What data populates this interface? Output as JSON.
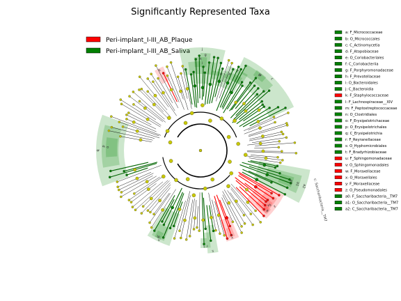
{
  "chart_data": {
    "type": "cladogram",
    "title": "Significantly Represented Taxa",
    "colors": {
      "plaque": "#ff0000",
      "saliva": "#008000",
      "neutral_node": "#c8c800",
      "branch": "#000000"
    },
    "legend": [
      {
        "label": "Peri-implant_I-III_AB_Plaque",
        "group": "plaque"
      },
      {
        "label": "Peri-implant_I-III_AB_Saliva",
        "group": "saliva"
      }
    ],
    "clade_key": [
      {
        "label": "a: F_Micrococcaceae",
        "group": "saliva"
      },
      {
        "label": "b: O_Micrococcales",
        "group": "saliva"
      },
      {
        "label": "c: C_Actinomycetia",
        "group": "saliva"
      },
      {
        "label": "d: F_Atopobiaceae",
        "group": "saliva"
      },
      {
        "label": "e: O_Coriobacteriales",
        "group": "saliva"
      },
      {
        "label": "f: C_Coriobacteriia",
        "group": "saliva"
      },
      {
        "label": "g: F_Porphyromonadaceae",
        "group": "saliva"
      },
      {
        "label": "h: F_Prevotellaceae",
        "group": "saliva"
      },
      {
        "label": "i: O_Bacteroidales",
        "group": "saliva"
      },
      {
        "label": "j: C_Bacteroidia",
        "group": "saliva"
      },
      {
        "label": "k: F_Staphylococcaceae",
        "group": "plaque"
      },
      {
        "label": "l: F_Lachnospiraceae__XIV",
        "group": "saliva"
      },
      {
        "label": "m: F_Peptostreptococcaceae",
        "group": "saliva"
      },
      {
        "label": "n: O_Clostridiales",
        "group": "saliva"
      },
      {
        "label": "o: F_Erysipelotrichaceae",
        "group": "saliva"
      },
      {
        "label": "p: O_Erysipelotrichales",
        "group": "saliva"
      },
      {
        "label": "q: C_Erysipelotrichia",
        "group": "saliva"
      },
      {
        "label": "r: F_Reyranellaceae",
        "group": "saliva"
      },
      {
        "label": "s: O_Hyphomicrobiales",
        "group": "saliva"
      },
      {
        "label": "t: F_Bradyrhizobiaceae",
        "group": "saliva"
      },
      {
        "label": "u: F_Sphingomonadaceae",
        "group": "plaque"
      },
      {
        "label": "v: O_Sphingomonadales",
        "group": "plaque"
      },
      {
        "label": "w: F_Moraxellaceae",
        "group": "plaque"
      },
      {
        "label": "x: O_Moraxellales",
        "group": "plaque"
      },
      {
        "label": "y: F_Moraxellaceae",
        "group": "plaque"
      },
      {
        "label": "z: O_Pseudomonadales",
        "group": "plaque"
      },
      {
        "label": "a0: F_Saccharibacteria__TM7",
        "group": "saliva"
      },
      {
        "label": "a1: O_Saccharibacteria__TM7",
        "group": "saliva"
      },
      {
        "label": "a2: C_Saccharibacteria__TM7",
        "group": "saliva"
      }
    ],
    "sector_labels": [
      {
        "letter": "c",
        "group": "saliva"
      },
      {
        "letter": "b",
        "group": "saliva"
      },
      {
        "letter": "a",
        "group": "saliva"
      },
      {
        "letter": "f",
        "group": "saliva"
      },
      {
        "letter": "e",
        "group": "saliva"
      },
      {
        "letter": "d",
        "group": "saliva"
      },
      {
        "letter": "j",
        "group": "saliva"
      },
      {
        "letter": "i",
        "group": "saliva"
      },
      {
        "letter": "h",
        "group": "saliva"
      },
      {
        "letter": "g",
        "group": "saliva"
      },
      {
        "letter": "k",
        "group": "plaque"
      },
      {
        "letter": "q",
        "group": "saliva"
      },
      {
        "letter": "p",
        "group": "saliva"
      },
      {
        "letter": "o",
        "group": "saliva"
      },
      {
        "letter": "n",
        "group": "saliva"
      },
      {
        "letter": "m",
        "group": "saliva"
      },
      {
        "letter": "l",
        "group": "saliva"
      },
      {
        "letter": "s",
        "group": "saliva"
      },
      {
        "letter": "r",
        "group": "saliva"
      },
      {
        "letter": "t",
        "group": "saliva"
      },
      {
        "letter": "v",
        "group": "plaque"
      },
      {
        "letter": "u",
        "group": "plaque"
      },
      {
        "letter": "z",
        "group": "plaque"
      },
      {
        "letter": "y",
        "group": "plaque"
      },
      {
        "letter": "x",
        "group": "plaque"
      },
      {
        "letter": "w",
        "group": "plaque"
      },
      {
        "letter": "a2",
        "group": "saliva"
      },
      {
        "letter": "a1",
        "group": "saliva"
      },
      {
        "letter": "a0",
        "group": "saliva"
      }
    ],
    "outer_label": "c: Saccharibacteria__TM7"
  }
}
